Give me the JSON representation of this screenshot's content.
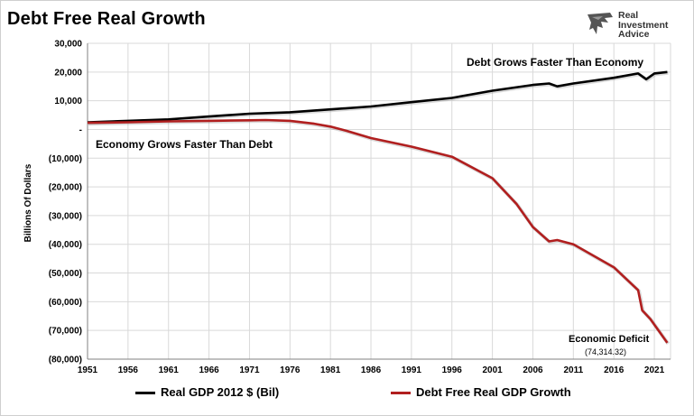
{
  "header": {
    "title": "Debt Free Real Growth"
  },
  "logo": {
    "line1": "Real",
    "line2": "Investment",
    "line3": "Advice",
    "icon": "eagle-head-icon"
  },
  "colors": {
    "gdp": "#000000",
    "debt_free": "#b11f1f",
    "grid": "#d9d9d9",
    "axis": "#808080"
  },
  "chart_data": {
    "type": "line",
    "title": "Debt Free Real Growth",
    "xlabel": "",
    "ylabel": "Billions Of Dollars",
    "xlim": [
      1951,
      2023
    ],
    "ylim": [
      -80000,
      30000
    ],
    "grid": true,
    "legend_position": "bottom",
    "x_ticks": [
      1951,
      1956,
      1961,
      1966,
      1971,
      1976,
      1981,
      1986,
      1991,
      1996,
      2001,
      2006,
      2011,
      2016,
      2021
    ],
    "y_ticks": [
      {
        "value": 30000,
        "label": "30,000"
      },
      {
        "value": 20000,
        "label": "20,000"
      },
      {
        "value": 10000,
        "label": "10,000"
      },
      {
        "value": 0,
        "label": "-"
      },
      {
        "value": -10000,
        "label": "(10,000)"
      },
      {
        "value": -20000,
        "label": "(20,000)"
      },
      {
        "value": -30000,
        "label": "(30,000)"
      },
      {
        "value": -40000,
        "label": "(40,000)"
      },
      {
        "value": -50000,
        "label": "(50,000)"
      },
      {
        "value": -60000,
        "label": "(60,000)"
      },
      {
        "value": -70000,
        "label": "(70,000)"
      },
      {
        "value": -80000,
        "label": "(80,000)"
      }
    ],
    "series": [
      {
        "name": "Real GDP 2012 $ (Bil)",
        "x": [
          1951,
          1956,
          1961,
          1966,
          1971,
          1976,
          1981,
          1986,
          1991,
          1996,
          2001,
          2006,
          2008,
          2009,
          2011,
          2016,
          2019,
          2020,
          2021,
          2022.6
        ],
        "values": [
          2500,
          3000,
          3500,
          4500,
          5500,
          6000,
          7000,
          8000,
          9500,
          11000,
          13500,
          15500,
          16000,
          15000,
          16000,
          18000,
          19500,
          17500,
          19500,
          20000
        ]
      },
      {
        "name": "Debt Free Real GDP Growth",
        "x": [
          1951,
          1956,
          1961,
          1966,
          1971,
          1973,
          1976,
          1979,
          1981,
          1983,
          1986,
          1991,
          1996,
          2001,
          2004,
          2006,
          2008,
          2009,
          2011,
          2016,
          2019,
          2019.5,
          2020.5,
          2022.6
        ],
        "values": [
          2300,
          2500,
          2800,
          3000,
          3200,
          3300,
          3000,
          2000,
          1000,
          -500,
          -3000,
          -6000,
          -9500,
          -17000,
          -26000,
          -34000,
          -39000,
          -38500,
          -40000,
          -48000,
          -56000,
          -63000,
          -66000,
          -74314.32
        ]
      }
    ],
    "annotations": [
      {
        "text": "Debt Grows Faster Than Economy"
      },
      {
        "text": "Economy Grows Faster Than Debt"
      },
      {
        "text": "Economic Deficit"
      },
      {
        "text": "(74,314.32)"
      }
    ]
  }
}
